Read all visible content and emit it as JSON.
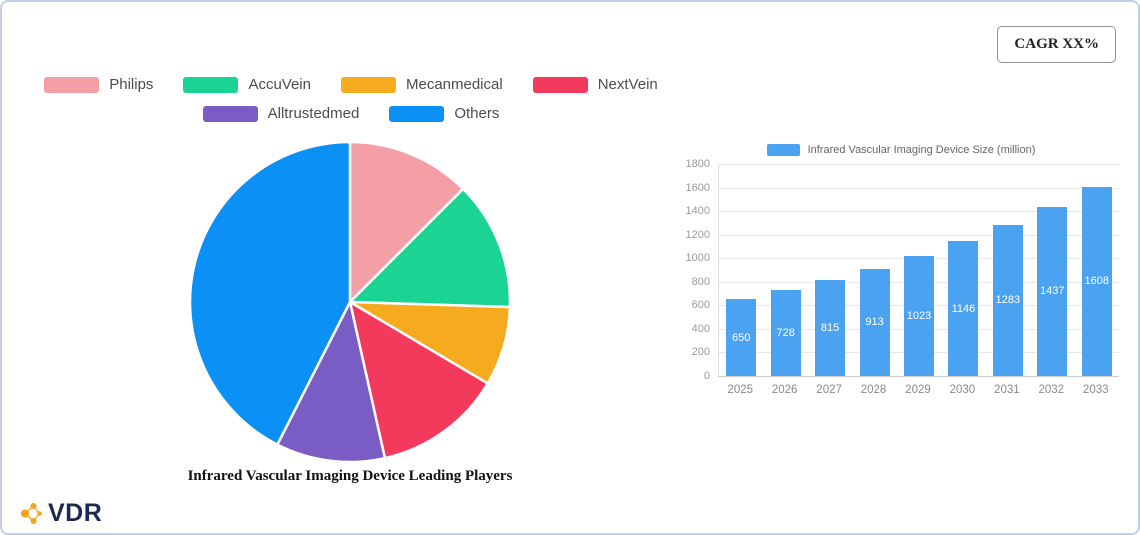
{
  "card": {
    "cagr_label": "CAGR XX%"
  },
  "logo": {
    "text": "VDR",
    "icon_color": "#f6a21c"
  },
  "chart_data": [
    {
      "type": "pie",
      "title": "Infrared Vascular Imaging Device Leading Players",
      "labels": [
        "Philips",
        "AccuVein",
        "Mecanmedical",
        "NextVein",
        "Alltrustedmed",
        "Others"
      ],
      "values": [
        12.5,
        13,
        8,
        13,
        11,
        42.5
      ],
      "colors": [
        "#f49fa5",
        "#1bd392",
        "#f6ab1f",
        "#f43a5c",
        "#7a5cc5",
        "#0b90f5"
      ],
      "legend_position": "top",
      "start_angle": "top",
      "direction": "clockwise"
    },
    {
      "type": "bar",
      "legend": "Infrared Vascular Imaging Device Size (million)",
      "categories": [
        "2025",
        "2026",
        "2027",
        "2028",
        "2029",
        "2030",
        "2031",
        "2032",
        "2033"
      ],
      "values": [
        650,
        728,
        815,
        913,
        1023,
        1146,
        1283,
        1437,
        1608
      ],
      "ylim": [
        0,
        1800
      ],
      "ytick_step": 200,
      "bar_color": "#4aa2f1",
      "grid": true,
      "value_labels": "inside-white"
    }
  ]
}
